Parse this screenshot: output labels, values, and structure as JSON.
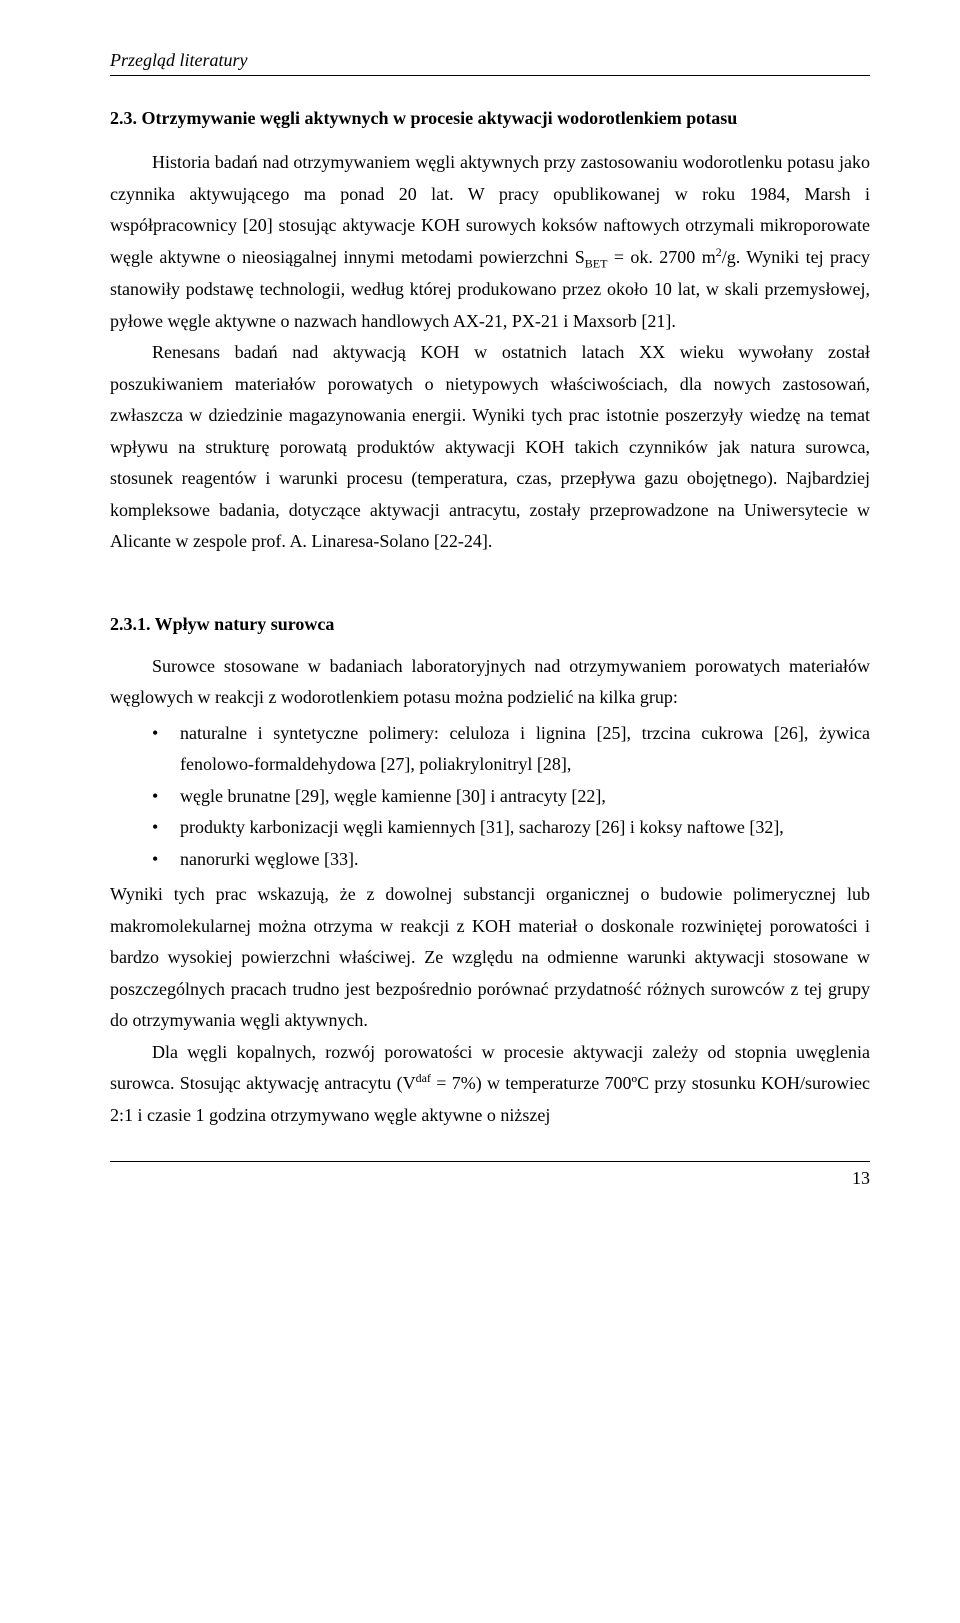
{
  "header": {
    "running_title": "Przegląd literatury"
  },
  "section": {
    "title": "2.3. Otrzymywanie węgli aktywnych w procesie aktywacji wodorotlenkiem potasu",
    "paragraph1_part1": "Historia badań nad otrzymywaniem węgli aktywnych przy zastosowaniu wodorotlenku potasu jako czynnika aktywującego ma ponad 20 lat. W pracy opublikowanej w roku 1984, Marsh i współpracownicy [20] stosując aktywacje KOH surowych koksów naftowych otrzymali mikroporowate węgle aktywne o nieosiągalnej innymi metodami powierzchni S",
    "paragraph1_sub": "BET",
    "paragraph1_part2": " = ok. 2700 m",
    "paragraph1_sup": "2",
    "paragraph1_part3": "/g. Wyniki tej pracy stanowiły podstawę technologii, według której produkowano przez około 10 lat, w skali przemysłowej, pyłowe węgle aktywne o nazwach handlowych AX-21, PX-21 i Maxsorb [21].",
    "paragraph2": "Renesans badań nad aktywacją KOH w ostatnich latach XX wieku wywołany został poszukiwaniem materiałów porowatych o nietypowych właściwościach, dla nowych zastosowań, zwłaszcza w dziedzinie magazynowania energii. Wyniki tych prac istotnie poszerzyły wiedzę na temat wpływu na strukturę porowatą produktów aktywacji KOH takich czynników jak natura surowca, stosunek reagentów i warunki procesu (temperatura, czas, przepływa gazu obojętnego). Najbardziej kompleksowe badania, dotyczące aktywacji antracytu, zostały przeprowadzone na Uniwersytecie w Alicante w zespole prof. A. Linaresa-Solano [22-24]."
  },
  "subsection": {
    "title": "2.3.1. Wpływ natury surowca",
    "intro": "Surowce stosowane w badaniach laboratoryjnych nad otrzymywaniem porowatych materiałów węglowych w reakcji z wodorotlenkiem potasu można podzielić na kilka grup:",
    "bullets": [
      "naturalne i syntetyczne polimery: celuloza i lignina [25], trzcina cukrowa [26], żywica fenolowo-formaldehydowa [27], poliakrylonitryl [28],",
      "węgle brunatne [29], węgle kamienne [30] i antracyty [22],",
      "produkty karbonizacji węgli kamiennych [31], sacharozy [26] i koksy naftowe [32],",
      "nanorurki węglowe [33]."
    ],
    "after_bullets": "Wyniki tych prac wskazują, że z dowolnej substancji organicznej o budowie polimerycznej lub makromolekularnej można otrzyma w reakcji z KOH materiał o doskonale rozwiniętej porowatości i bardzo wysokiej powierzchni właściwej. Ze względu na odmienne warunki aktywacji stosowane w poszczególnych pracach trudno jest bezpośrednio porównać przydatność różnych surowców z tej grupy do otrzymywania węgli aktywnych.",
    "final_para_part1": "Dla węgli kopalnych, rozwój porowatości w procesie aktywacji zależy od stopnia uwęglenia surowca. Stosując aktywację antracytu (V",
    "final_para_sup": "daf",
    "final_para_part2": " = 7%) w temperaturze 700ºC przy stosunku KOH/surowiec 2:1 i czasie 1 godzina otrzymywano węgle aktywne o niższej"
  },
  "footer": {
    "page_number": "13"
  }
}
